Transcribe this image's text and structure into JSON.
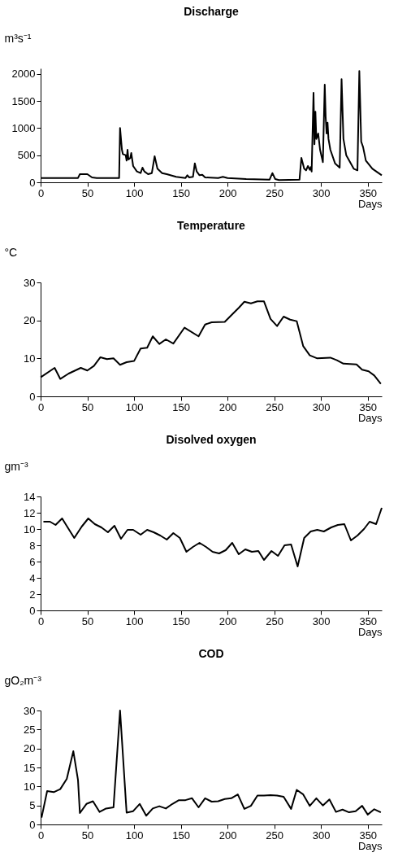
{
  "chart_data": [
    {
      "type": "line",
      "title": "Discharge",
      "ylabel": "m³s⁻¹",
      "xlabel": "Days",
      "xlim": [
        0,
        365
      ],
      "xticks": [
        0,
        50,
        100,
        150,
        200,
        250,
        300,
        350
      ],
      "ylim": [
        0,
        2100
      ],
      "yticks": [
        0,
        500,
        1000,
        1500,
        2000
      ],
      "series": [
        {
          "color": "#000000",
          "x": [
            0,
            40,
            42,
            50,
            55,
            60,
            84,
            85,
            87,
            88,
            91,
            92,
            93,
            94,
            96,
            97,
            99,
            103,
            107,
            109,
            111,
            115,
            119,
            122,
            125,
            130,
            135,
            145,
            155,
            157,
            159,
            163,
            165,
            167,
            170,
            173,
            176,
            190,
            195,
            200,
            220,
            245,
            248,
            251,
            255,
            277,
            279,
            282,
            284,
            286,
            288,
            289,
            290,
            292,
            293,
            294,
            295,
            297,
            299,
            302,
            304,
            305,
            306,
            307,
            308,
            310,
            315,
            320,
            322,
            324,
            327,
            335,
            339,
            341,
            343,
            345,
            348,
            355,
            365
          ],
          "values": [
            80,
            80,
            150,
            150,
            90,
            80,
            80,
            1000,
            600,
            520,
            500,
            400,
            600,
            420,
            450,
            540,
            300,
            200,
            170,
            270,
            200,
            150,
            170,
            480,
            250,
            170,
            150,
            100,
            80,
            130,
            90,
            100,
            350,
            200,
            130,
            140,
            90,
            80,
            100,
            80,
            60,
            50,
            170,
            60,
            40,
            50,
            450,
            250,
            220,
            300,
            230,
            280,
            200,
            1650,
            700,
            1300,
            800,
            900,
            600,
            370,
            1800,
            1200,
            900,
            1100,
            800,
            600,
            350,
            270,
            1900,
            800,
            500,
            250,
            220,
            2050,
            750,
            650,
            400,
            250,
            130
          ]
        }
      ]
    },
    {
      "type": "line",
      "title": "Temperature",
      "ylabel": "°C",
      "xlabel": "Days",
      "xlim": [
        0,
        365
      ],
      "xticks": [
        0,
        50,
        100,
        150,
        200,
        250,
        300,
        350
      ],
      "ylim": [
        0,
        30
      ],
      "yticks": [
        0,
        10,
        20,
        30
      ],
      "series": [
        {
          "color": "#000000",
          "x": [
            0,
            15,
            21,
            30,
            43,
            50,
            57,
            64,
            71,
            78,
            85,
            92,
            100,
            107,
            114,
            120,
            127,
            134,
            142,
            154,
            169,
            176,
            183,
            197,
            205,
            212,
            218,
            225,
            232,
            239,
            246,
            253,
            260,
            267,
            274,
            281,
            288,
            296,
            310,
            317,
            324,
            338,
            344,
            351,
            357,
            364
          ],
          "values": [
            5,
            7.5,
            4.6,
            6,
            7.5,
            6.8,
            8,
            10.3,
            9.8,
            10,
            8.3,
            9,
            9.3,
            12.6,
            12.8,
            15.8,
            13.8,
            15,
            13.9,
            18.1,
            15.8,
            18.9,
            19.5,
            19.6,
            21.6,
            23.3,
            24.9,
            24.5,
            25,
            25,
            20.4,
            18.5,
            21,
            20.2,
            19.8,
            13.2,
            10.8,
            10,
            10.2,
            9.5,
            8.6,
            8.4,
            7,
            6.6,
            5.5,
            3.3
          ]
        }
      ]
    },
    {
      "type": "line",
      "title": "Disolved oxygen",
      "ylabel": "gm⁻³",
      "xlabel": "Days",
      "xlim": [
        0,
        365
      ],
      "xticks": [
        0,
        50,
        100,
        150,
        200,
        250,
        300,
        350
      ],
      "ylim": [
        0,
        14
      ],
      "yticks": [
        0,
        2,
        4,
        6,
        8,
        10,
        12,
        14
      ],
      "series": [
        {
          "color": "#000000",
          "x": [
            3,
            10,
            16,
            23,
            30,
            36,
            44,
            51,
            58,
            65,
            72,
            79,
            86,
            93,
            99,
            107,
            114,
            121,
            128,
            135,
            142,
            149,
            156,
            163,
            170,
            177,
            184,
            191,
            198,
            205,
            212,
            219,
            226,
            233,
            239,
            247,
            254,
            261,
            268,
            275,
            282,
            289,
            296,
            303,
            311,
            318,
            325,
            332,
            339,
            346,
            352,
            359,
            365
          ],
          "values": [
            10.9,
            10.9,
            10.5,
            11.3,
            10,
            8.9,
            10.3,
            11.3,
            10.6,
            10.2,
            9.6,
            10.4,
            8.8,
            9.9,
            9.9,
            9.3,
            9.9,
            9.6,
            9.2,
            8.7,
            9.5,
            8.9,
            7.2,
            7.8,
            8.3,
            7.8,
            7.2,
            7,
            7.4,
            8.3,
            6.9,
            7.5,
            7.2,
            7.3,
            6.2,
            7.3,
            6.7,
            8,
            8.1,
            5.4,
            8.9,
            9.7,
            9.9,
            9.7,
            10.2,
            10.5,
            10.6,
            8.6,
            9.2,
            10,
            10.9,
            10.6,
            12.6
          ]
        }
      ]
    },
    {
      "type": "line",
      "title": "COD",
      "ylabel": "gO₂m⁻³",
      "xlabel": "Days",
      "xlim": [
        0,
        365
      ],
      "xticks": [
        0,
        50,
        100,
        150,
        200,
        250,
        300,
        350
      ],
      "ylim": [
        0,
        30
      ],
      "yticks": [
        0,
        5,
        10,
        15,
        20,
        25,
        30
      ],
      "series": [
        {
          "color": "#000000",
          "x": [
            1,
            7,
            14,
            21,
            28,
            35,
            40,
            42,
            49,
            56,
            63,
            70,
            78,
            85,
            92,
            99,
            106,
            113,
            120,
            127,
            134,
            141,
            148,
            155,
            162,
            169,
            176,
            183,
            190,
            197,
            204,
            211,
            218,
            225,
            232,
            239,
            246,
            253,
            260,
            268,
            274,
            281,
            288,
            295,
            302,
            309,
            316,
            323,
            330,
            337,
            344,
            350,
            357,
            364
          ],
          "values": [
            1.8,
            8.8,
            8.5,
            9.3,
            12,
            19.3,
            11.7,
            3,
            5.4,
            6.1,
            3.3,
            4.2,
            4.5,
            30,
            3.1,
            3.5,
            5.4,
            2.3,
            4.2,
            4.8,
            4.2,
            5.4,
            6.4,
            6.4,
            6.9,
            4.5,
            6.9,
            6,
            6.1,
            6.7,
            6.9,
            7.9,
            4.1,
            4.9,
            7.6,
            7.6,
            7.7,
            7.6,
            7.3,
            4.1,
            9.1,
            7.9,
            4.9,
            6.9,
            5,
            6.6,
            3.3,
            3.9,
            3.2,
            3.5,
            4.9,
            2.6,
            4,
            3.2
          ]
        }
      ]
    }
  ]
}
